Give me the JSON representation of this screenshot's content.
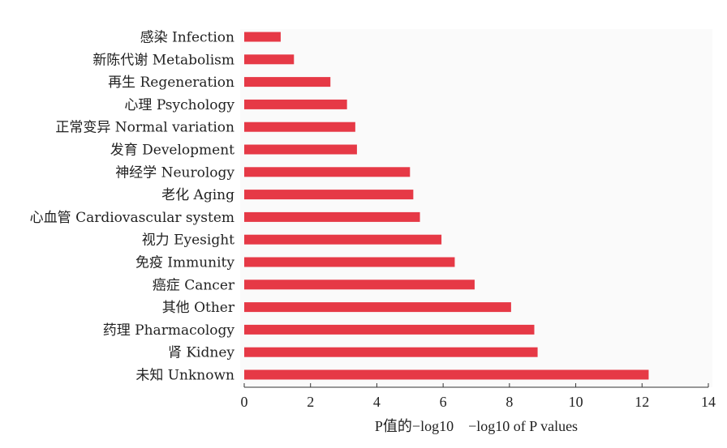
{
  "chart_data": {
    "type": "bar",
    "orientation": "horizontal",
    "categories": [
      "感染 Infection",
      "新陈代谢 Metabolism",
      "再生 Regeneration",
      "心理 Psychology",
      "正常变异 Normal variation",
      "发育 Development",
      "神经学 Neurology",
      "老化 Aging",
      "心血管 Cardiovascular system",
      "视力 Eyesight",
      "免疫 Immunity",
      "癌症 Cancer",
      "其他 Other",
      "药理 Pharmacology",
      "肾 Kidney",
      "未知 Unknown"
    ],
    "values": [
      1.1,
      1.5,
      2.6,
      3.1,
      3.35,
      3.4,
      5.0,
      5.1,
      5.3,
      5.95,
      6.35,
      6.95,
      8.05,
      8.75,
      8.85,
      12.2
    ],
    "xlabel": "P值的−log10　−log10 of P values",
    "ylabel": "",
    "xlim": [
      0,
      14
    ],
    "xticks": [
      "0",
      "2",
      "4",
      "6",
      "8",
      "10",
      "12",
      "14"
    ],
    "bar_color": "#e63946",
    "grid": false,
    "legend": "none"
  }
}
